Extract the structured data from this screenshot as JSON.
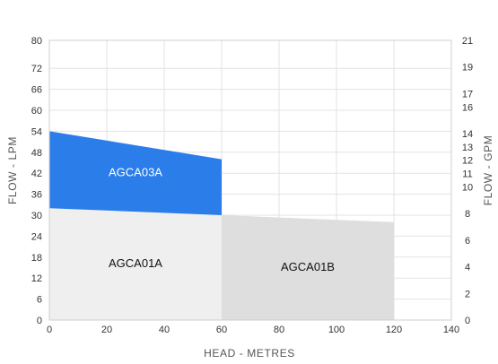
{
  "chart_data": {
    "type": "area",
    "xlabel": "HEAD - METRES",
    "ylabel_left": "FLOW - LPM",
    "ylabel_right": "FLOW - GPM",
    "xlim": [
      0,
      140
    ],
    "ylim_left": [
      0,
      80
    ],
    "ylim_right": [
      0,
      21
    ],
    "x_ticks": [
      0,
      20,
      40,
      60,
      80,
      100,
      120,
      140
    ],
    "y_ticks_left": [
      0,
      6,
      12,
      18,
      24,
      30,
      36,
      42,
      48,
      54,
      60,
      66,
      72,
      80
    ],
    "y_ticks_right": [
      0,
      2,
      4,
      6,
      8,
      10,
      11,
      12,
      13,
      14,
      16,
      17,
      19,
      21
    ],
    "grid": true,
    "series": [
      {
        "name": "AGCA01A",
        "color": "#efefef",
        "polygon": [
          [
            0,
            0
          ],
          [
            0,
            32
          ],
          [
            60,
            30
          ],
          [
            60,
            0
          ]
        ]
      },
      {
        "name": "AGCA01B",
        "color": "#dedede",
        "polygon": [
          [
            60,
            0
          ],
          [
            60,
            30
          ],
          [
            120,
            28
          ],
          [
            120,
            0
          ]
        ]
      },
      {
        "name": "AGCA03A",
        "color": "#2b7de9",
        "polygon": [
          [
            0,
            32
          ],
          [
            0,
            54
          ],
          [
            60,
            46
          ],
          [
            60,
            30
          ]
        ]
      }
    ],
    "labels": [
      {
        "text": "AGCA03A",
        "x": 30,
        "y": 42,
        "color": "#ffffff"
      },
      {
        "text": "AGCA01A",
        "x": 30,
        "y": 16,
        "color": "#111111"
      },
      {
        "text": "AGCA01B",
        "x": 90,
        "y": 15,
        "color": "#111111"
      }
    ]
  }
}
